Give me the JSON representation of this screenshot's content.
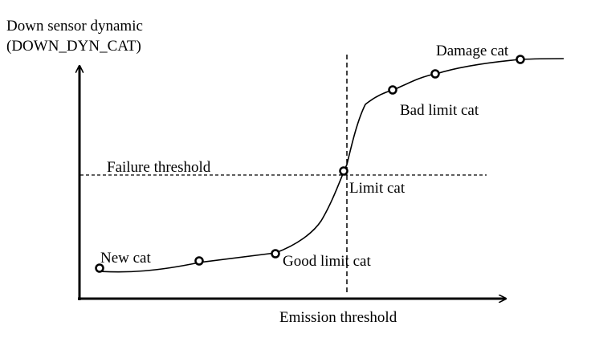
{
  "ylabel_line1": "Down sensor dynamic",
  "ylabel_line2": "(DOWN_DYN_CAT)",
  "xlabel": "Emission threshold",
  "threshold_label": "Failure threshold",
  "points": {
    "new": "New cat",
    "good_limit": "Good limit cat",
    "limit": "Limit cat",
    "bad_limit": "Bad limit cat",
    "damage": "Damage cat"
  },
  "colors": {
    "ink": "#000000",
    "background": "#ffffff"
  }
}
